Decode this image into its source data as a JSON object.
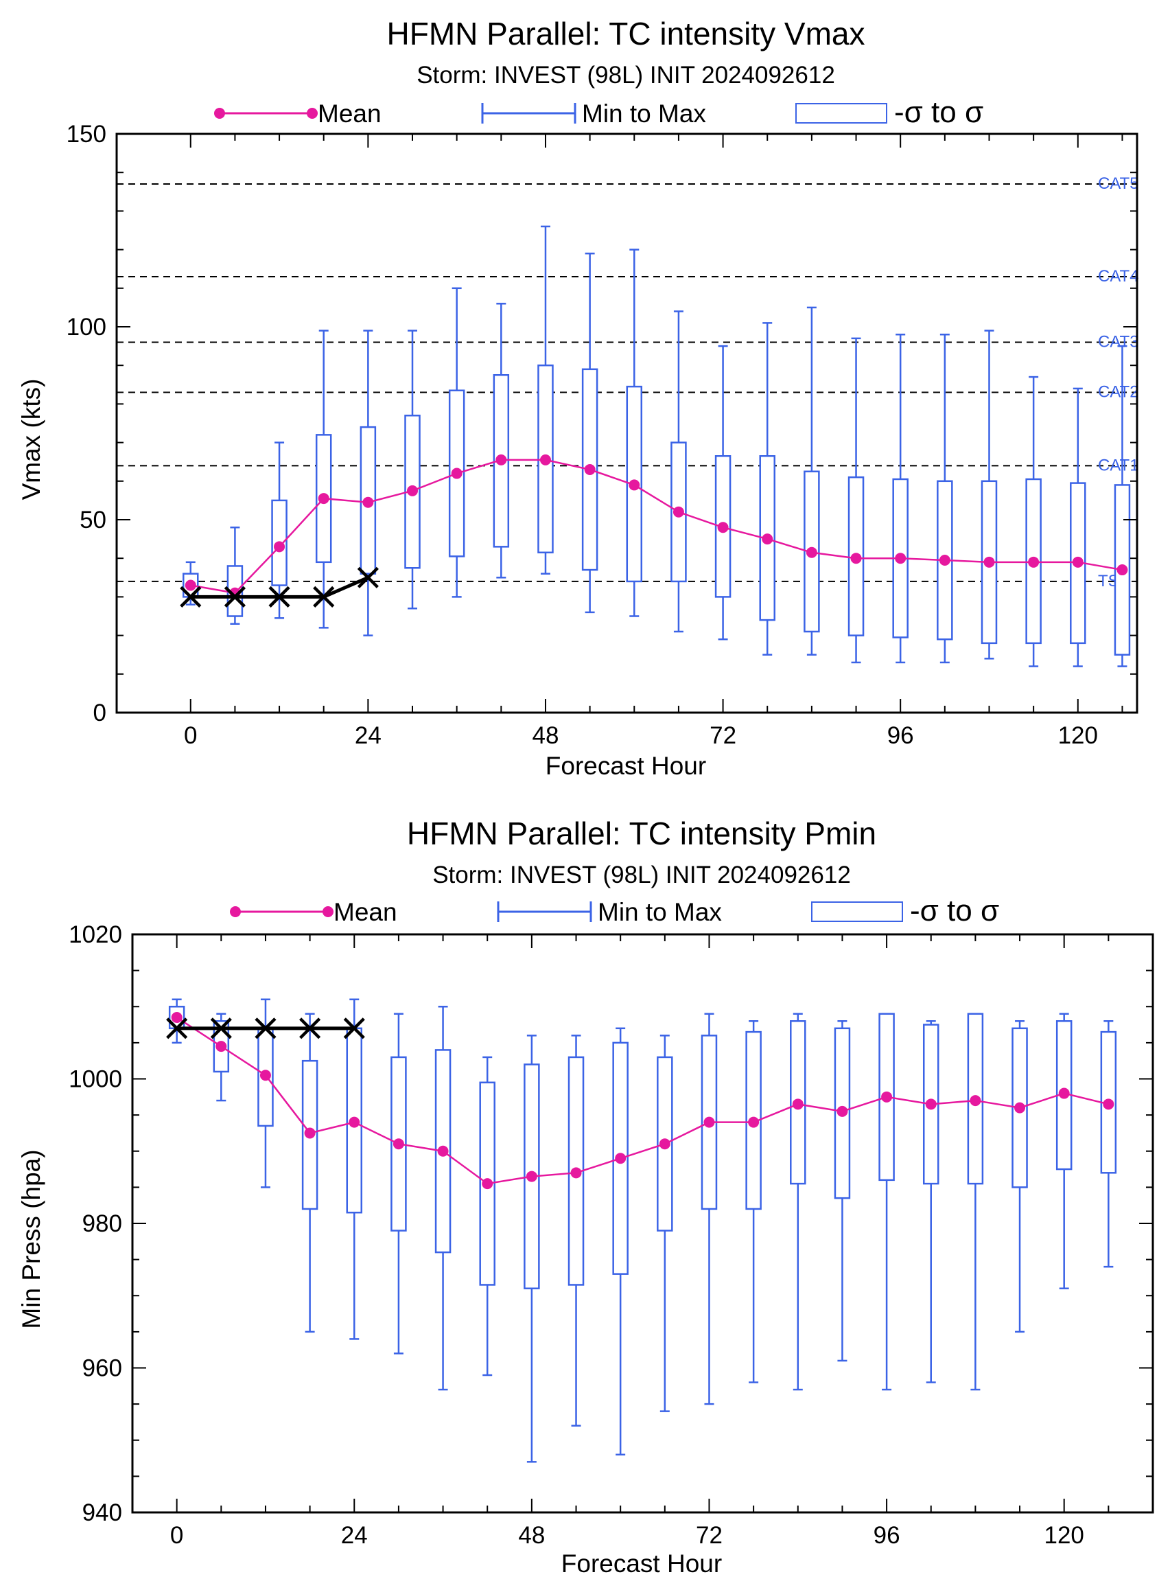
{
  "colors": {
    "mean": "#e6189e",
    "minmax": "#3b63e6",
    "sigma": "#3b63e6",
    "obs": "#000000",
    "axis": "#000000"
  },
  "legend": {
    "mean": "Mean",
    "minmax": "Min to Max",
    "sigma": "-σ to σ"
  },
  "chart_data": [
    {
      "type": "box",
      "title": "HFMN Parallel: TC intensity Vmax",
      "subtitle": "Storm: INVEST (98L) INIT 2024092612",
      "xlabel": "Forecast Hour",
      "ylabel": "Vmax (kts)",
      "xlim": [
        -10,
        128
      ],
      "ylim": [
        0,
        150
      ],
      "xticks": [
        0,
        24,
        48,
        72,
        96,
        120
      ],
      "yticks": [
        0,
        50,
        100,
        150
      ],
      "hours": [
        0,
        6,
        12,
        18,
        24,
        30,
        36,
        42,
        48,
        54,
        60,
        66,
        72,
        78,
        84,
        90,
        96,
        102,
        108,
        114,
        120,
        126
      ],
      "mean": [
        33,
        31,
        43,
        55.5,
        54.5,
        57.5,
        62,
        65.5,
        65.5,
        63,
        59,
        52,
        48,
        45,
        41.5,
        40,
        40,
        39.5,
        39,
        39,
        39,
        37
      ],
      "min": [
        28,
        23,
        24.5,
        22,
        20,
        27,
        30,
        35,
        36,
        26,
        25,
        21,
        19,
        15,
        15,
        13,
        13,
        13,
        14,
        12,
        12,
        12
      ],
      "max": [
        39,
        48,
        70,
        99,
        99,
        99,
        110,
        106,
        126,
        119,
        120,
        104,
        95,
        101,
        105,
        97,
        98,
        98,
        99,
        87,
        84,
        95
      ],
      "sigma_low": [
        30,
        25,
        33,
        39,
        36,
        37.5,
        40.5,
        43,
        41.5,
        37,
        34,
        34,
        30,
        24,
        21,
        20,
        19.5,
        19,
        18,
        18,
        18,
        15
      ],
      "sigma_high": [
        36,
        38,
        55,
        72,
        74,
        77,
        83.5,
        87.5,
        90,
        89,
        84.5,
        70,
        66.5,
        66.5,
        62.5,
        61,
        60.5,
        60,
        60,
        60.5,
        59.5,
        59
      ],
      "observed": {
        "hours": [
          0,
          6,
          12,
          18,
          24
        ],
        "values": [
          30,
          30,
          30,
          30,
          35
        ]
      },
      "reference_lines": [
        {
          "label": "TS",
          "value": 34
        },
        {
          "label": "CAT1",
          "value": 64
        },
        {
          "label": "CAT2",
          "value": 83
        },
        {
          "label": "CAT3",
          "value": 96
        },
        {
          "label": "CAT4",
          "value": 113
        },
        {
          "label": "CAT5",
          "value": 137
        }
      ]
    },
    {
      "type": "box",
      "title": "HFMN Parallel: TC intensity Pmin",
      "subtitle": "Storm: INVEST (98L) INIT 2024092612",
      "xlabel": "Forecast Hour",
      "ylabel": "Min Press (hpa)",
      "xlim": [
        -6,
        132
      ],
      "ylim": [
        940,
        1020
      ],
      "xticks": [
        0,
        24,
        48,
        72,
        96,
        120
      ],
      "yticks": [
        940,
        960,
        980,
        1000,
        1020
      ],
      "hours": [
        0,
        6,
        12,
        18,
        24,
        30,
        36,
        42,
        48,
        54,
        60,
        66,
        72,
        78,
        84,
        90,
        96,
        102,
        108,
        114,
        120,
        126
      ],
      "mean": [
        1008.5,
        1004.5,
        1000.5,
        992.5,
        994,
        991,
        990,
        985.5,
        986.5,
        987,
        989,
        991,
        994,
        994,
        996.5,
        995.5,
        997.5,
        996.5,
        997,
        996,
        998,
        996.5
      ],
      "min": [
        1005,
        997,
        985,
        965,
        964,
        962,
        957,
        959,
        947,
        952,
        948,
        954,
        955,
        958,
        957,
        961,
        957,
        958,
        957,
        965,
        971,
        974
      ],
      "max": [
        1011,
        1009,
        1011,
        1009,
        1011,
        1009,
        1010,
        1003,
        1006,
        1006,
        1007,
        1006,
        1009,
        1008,
        1009,
        1008,
        1009,
        1008,
        1009,
        1008,
        1009,
        1008
      ],
      "sigma_low": [
        1007,
        1001,
        993.5,
        982,
        981.5,
        979,
        976,
        971.5,
        971,
        971.5,
        973,
        979,
        982,
        982,
        985.5,
        983.5,
        986,
        985.5,
        985.5,
        985,
        987.5,
        987
      ],
      "sigma_high": [
        1010,
        1008,
        1007,
        1002.5,
        1007,
        1003,
        1004,
        999.5,
        1002,
        1003,
        1005,
        1003,
        1006,
        1006.5,
        1008,
        1007,
        1009,
        1007.5,
        1009,
        1007,
        1008,
        1006.5
      ],
      "observed": {
        "hours": [
          0,
          6,
          12,
          18,
          24
        ],
        "values": [
          1007,
          1007,
          1007,
          1007,
          1007
        ]
      },
      "reference_lines": []
    }
  ]
}
